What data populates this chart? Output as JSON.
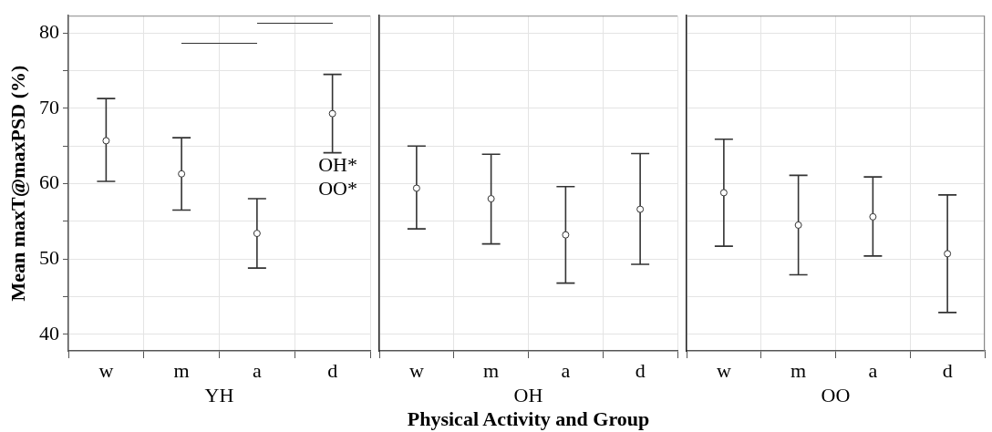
{
  "chart_data": [
    {
      "type": "scatter",
      "ylabel": "Mean maxT@maxPSD (%)",
      "xlabel": "YH",
      "categories": [
        "w",
        "m",
        "a",
        "d"
      ],
      "series": [
        {
          "color": "#333333",
          "values": [
            65.7,
            61.3,
            53.4,
            69.3
          ],
          "errors": [
            [
              60.3,
              71.3
            ],
            [
              56.5,
              66.1
            ],
            [
              48.8,
              58.0
            ],
            [
              64.1,
              74.5
            ]
          ]
        }
      ],
      "ylim": [
        37.8,
        82.3
      ],
      "yticks": [
        40,
        {
          "value": 45,
          "label": null
        },
        50,
        {
          "value": 55,
          "label": null
        },
        60,
        {
          "value": 65,
          "label": null
        },
        70,
        {
          "value": 75,
          "label": null
        },
        80
      ],
      "grid": true,
      "marker": "circle",
      "annotations": [
        "OH*",
        "OO*"
      ]
    },
    {
      "type": "scatter",
      "xlabel": "OH",
      "categories": [
        "w",
        "m",
        "a",
        "d"
      ],
      "series": [
        {
          "color": "#333333",
          "values": [
            59.4,
            58.0,
            53.2,
            56.6
          ],
          "errors": [
            [
              54.0,
              65.0
            ],
            [
              52.0,
              63.9
            ],
            [
              46.8,
              59.6
            ],
            [
              49.3,
              64.0
            ]
          ]
        }
      ],
      "ylim": [
        37.8,
        82.3
      ],
      "yticks": [
        40,
        {
          "value": 45,
          "label": null
        },
        50,
        {
          "value": 55,
          "label": null
        },
        60,
        {
          "value": 65,
          "label": null
        },
        70,
        {
          "value": 75,
          "label": null
        },
        80
      ],
      "grid": true,
      "marker": "circle",
      "tick_labels": "x",
      "annotations": [
        "Physical Activity and Group"
      ]
    },
    {
      "type": "scatter",
      "xlabel": "OO",
      "categories": [
        "w",
        "m",
        "a",
        "d"
      ],
      "series": [
        {
          "color": "#333333",
          "values": [
            58.8,
            54.5,
            55.6,
            50.7
          ],
          "errors": [
            [
              51.7,
              65.9
            ],
            [
              47.9,
              61.1
            ],
            [
              50.4,
              60.9
            ],
            [
              42.9,
              58.5
            ]
          ]
        }
      ],
      "ylim": [
        37.8,
        82.3
      ],
      "yticks": [
        40,
        {
          "value": 45,
          "label": null
        },
        50,
        {
          "value": 55,
          "label": null
        },
        60,
        {
          "value": 65,
          "label": null
        },
        70,
        {
          "value": 75,
          "label": null
        },
        80
      ],
      "grid": true,
      "marker": "circle",
      "tick_labels": "x"
    }
  ]
}
